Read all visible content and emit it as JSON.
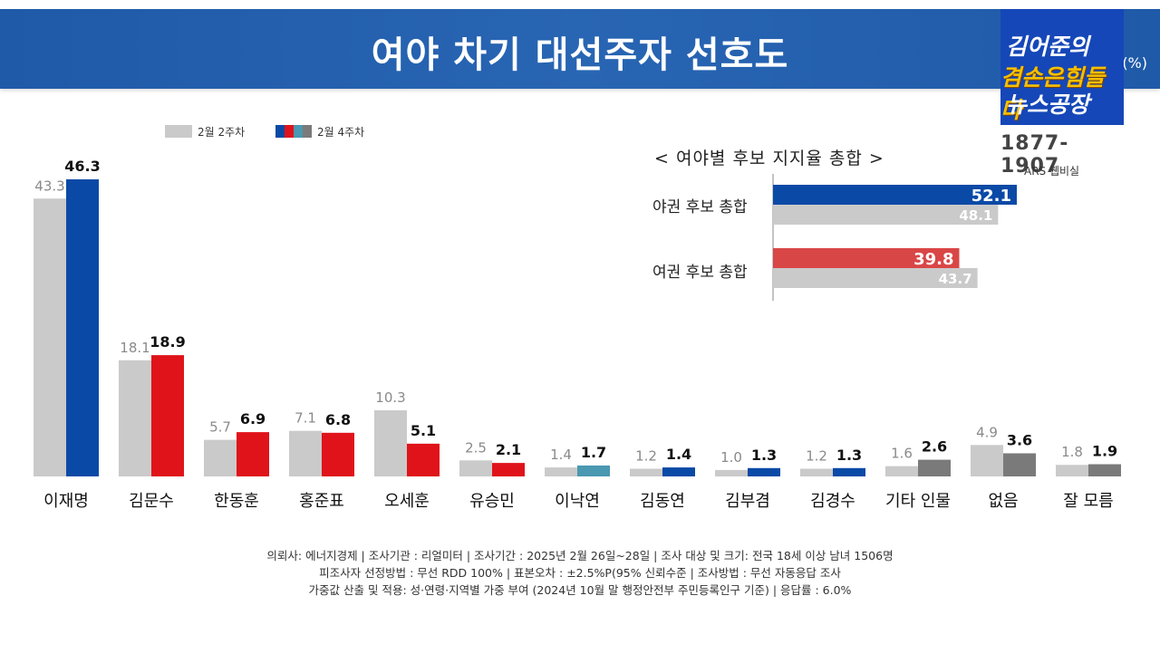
{
  "title": "여야 차기 대선주자 선호도",
  "unit": "(%)",
  "logo": {
    "line1": "김어준의",
    "line2": "겸손은힘들다",
    "line3": "뉴스공장",
    "years": "1877-1907",
    "sub": "ARS 웹비실"
  },
  "colors": {
    "gray": "#cacaca",
    "blue": "#0a4aa6",
    "red": "#e0131b",
    "teal": "#4a98b2",
    "darkgray": "#7a7a7a",
    "inset_red": "#d94646"
  },
  "chart_data": [
    {
      "type": "bar",
      "legend": [
        "2월 2주차",
        "2월 4주차"
      ],
      "categories": [
        "이재명",
        "김문수",
        "한동훈",
        "홍준표",
        "오세훈",
        "유승민",
        "이낙연",
        "김동연",
        "김부겸",
        "김경수",
        "기타 인물",
        "없음",
        "잘 모름"
      ],
      "series": [
        {
          "name": "2월 2주차",
          "values": [
            43.3,
            18.1,
            5.7,
            7.1,
            10.3,
            2.5,
            1.4,
            1.2,
            1.0,
            1.2,
            1.6,
            4.9,
            1.8
          ]
        },
        {
          "name": "2월 4주차",
          "values": [
            46.3,
            18.9,
            6.9,
            6.8,
            5.1,
            2.1,
            1.7,
            1.4,
            1.3,
            1.3,
            2.6,
            3.6,
            1.9
          ],
          "colors": [
            "blue",
            "red",
            "red",
            "red",
            "red",
            "red",
            "teal",
            "blue",
            "blue",
            "blue",
            "darkgray",
            "darkgray",
            "darkgray"
          ]
        }
      ],
      "ylim": [
        0,
        50
      ],
      "grid": false,
      "legend_position": "top-left"
    },
    {
      "type": "bar",
      "orientation": "horizontal",
      "title": "< 여야별 후보 지지율 총합 >",
      "categories": [
        "야권 후보 총합",
        "여권 후보 총합"
      ],
      "series": [
        {
          "name": "2월 4주차",
          "values": [
            52.1,
            39.8
          ],
          "colors": [
            "blue",
            "inset_red"
          ]
        },
        {
          "name": "2월 2주차",
          "values": [
            48.1,
            43.7
          ]
        }
      ],
      "xlim": [
        0,
        60
      ]
    }
  ],
  "footnotes": [
    "의뢰사: 에너지경제 | 조사기관 : 리얼미터 | 조사기간 : 2025년 2월 26일~28일 | 조사 대상 및 크기: 전국 18세 이상 남녀 1506명",
    "피조사자 선정방법 : 무선 RDD 100% | 표본오차 : ±2.5%P(95% 신뢰수준 | 조사방법 : 무선 자동응답 조사",
    "가중값 산출 및 적용: 성·연령·지역별 가중 부여 (2024년 10월 말 행정안전부 주민등록인구 기준) | 응답률 : 6.0%"
  ]
}
